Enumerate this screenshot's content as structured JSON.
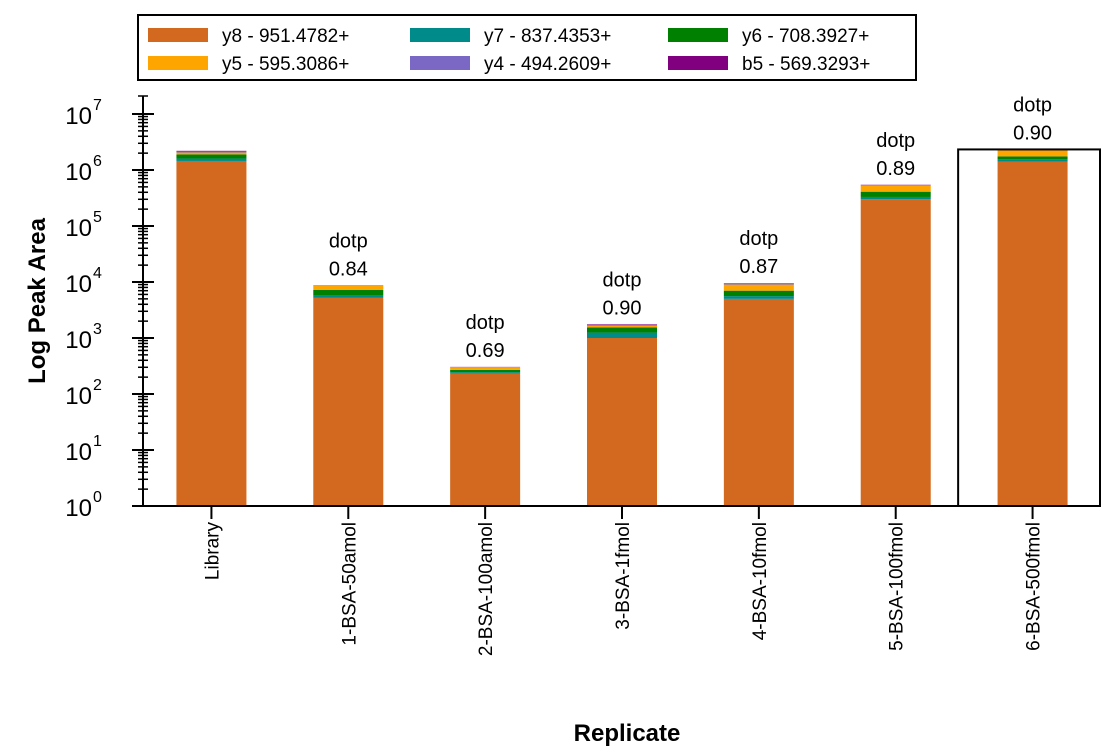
{
  "chart_data": {
    "type": "bar",
    "stacked": true,
    "title": "",
    "xlabel": "Replicate",
    "ylabel": "Log Peak Area",
    "yscale": "log",
    "ylim": [
      1,
      10000000
    ],
    "yticks": [
      {
        "base": "10",
        "exp": "0"
      },
      {
        "base": "10",
        "exp": "1"
      },
      {
        "base": "10",
        "exp": "2"
      },
      {
        "base": "10",
        "exp": "3"
      },
      {
        "base": "10",
        "exp": "4"
      },
      {
        "base": "10",
        "exp": "5"
      },
      {
        "base": "10",
        "exp": "6"
      },
      {
        "base": "10",
        "exp": "7"
      }
    ],
    "legend_position": "top",
    "grid": false,
    "categories": [
      "Library",
      "1-BSA-50amol",
      "2-BSA-100amol",
      "3-BSA-1fmol",
      "4-BSA-10fmol",
      "5-BSA-100fmol",
      "6-BSA-500fmol"
    ],
    "series": [
      {
        "name": "y8 - 951.4782+",
        "color": "#d2691e",
        "values": [
          1450000,
          5200,
          230,
          1000,
          5000,
          300000,
          1400000
        ]
      },
      {
        "name": "y7 - 837.4353+",
        "color": "#008b8b",
        "values": [
          150000,
          500,
          15,
          250,
          600,
          30000,
          150000
        ]
      },
      {
        "name": "y6 - 708.3927+",
        "color": "#008000",
        "values": [
          300000,
          1500,
          25,
          300,
          1400,
          80000,
          200000
        ]
      },
      {
        "name": "y5 - 595.3086+",
        "color": "#ffa500",
        "values": [
          150000,
          1300,
          30,
          100,
          2000,
          120000,
          500000
        ]
      },
      {
        "name": "y4 - 494.2609+",
        "color": "#7b68c4",
        "values": [
          100000,
          100,
          3,
          50,
          300,
          10000,
          50000
        ]
      },
      {
        "name": "b5 - 569.3293+",
        "color": "#800080",
        "values": [
          50000,
          100,
          2,
          50,
          200,
          5000,
          30000
        ]
      }
    ],
    "annotations": [
      {
        "category": "1-BSA-50amol",
        "line1": "dotp",
        "line2": "0.84"
      },
      {
        "category": "2-BSA-100amol",
        "line1": "dotp",
        "line2": "0.69"
      },
      {
        "category": "3-BSA-1fmol",
        "line1": "dotp",
        "line2": "0.90"
      },
      {
        "category": "4-BSA-10fmol",
        "line1": "dotp",
        "line2": "0.87"
      },
      {
        "category": "5-BSA-100fmol",
        "line1": "dotp",
        "line2": "0.89"
      },
      {
        "category": "6-BSA-500fmol",
        "line1": "dotp",
        "line2": "0.90"
      }
    ],
    "selected_category": "6-BSA-500fmol"
  }
}
